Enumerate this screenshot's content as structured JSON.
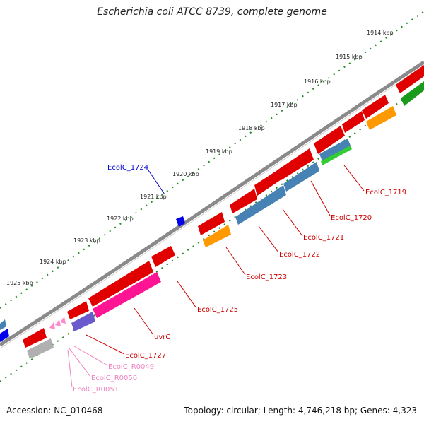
{
  "title": "Escherichia coli ATCC 8739, complete genome",
  "footer": {
    "accession": "Accession: NC_010468",
    "summary": "Topology: circular; Length: 4,746,218 bp; Genes: 4,323"
  },
  "ticks": [
    "1914 kbp",
    "1915 kbp",
    "1916 kbp",
    "1917 kbp",
    "1918 kbp",
    "1919 kbp",
    "1920 kbp",
    "1921 kbp",
    "1922 kbp",
    "1923 kbp",
    "1924 kbp",
    "1925 kbp"
  ],
  "labels": [
    {
      "text": "EcolC_1724",
      "color": "#0000cc"
    },
    {
      "text": "EcolC_1719",
      "color": "#cc0000"
    },
    {
      "text": "EcolC_1720",
      "color": "#cc0000"
    },
    {
      "text": "EcolC_1721",
      "color": "#cc0000"
    },
    {
      "text": "EcolC_1722",
      "color": "#cc0000"
    },
    {
      "text": "EcolC_1723",
      "color": "#cc0000"
    },
    {
      "text": "EcolC_1725",
      "color": "#cc0000"
    },
    {
      "text": "uvrC",
      "color": "#cc0000"
    },
    {
      "text": "EcolC_1727",
      "color": "#cc0000"
    },
    {
      "text": "EcolC_R0049",
      "color": "#ee82c0"
    },
    {
      "text": "EcolC_R0050",
      "color": "#ee82c0"
    },
    {
      "text": "EcolC_R0051",
      "color": "#ee82c0"
    }
  ],
  "colors": {
    "backbone": "#808080",
    "tick_marks": "#228b22",
    "cds": "#ff0000",
    "trna": "#ff88cc",
    "blue_feature": "#4682b4",
    "orange_feature": "#ff9900",
    "green_feature": "#33cc33",
    "purple_feature": "#6a5acd",
    "gray_feature": "#b0b0b0",
    "magenta_feature": "#ff1493"
  }
}
